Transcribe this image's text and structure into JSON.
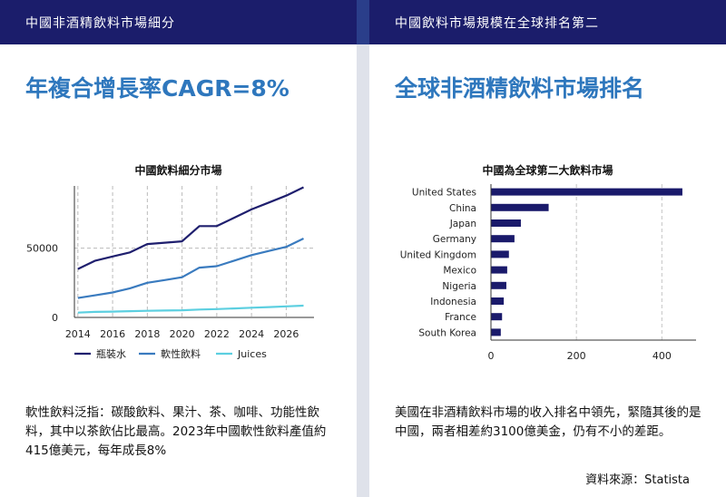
{
  "left": {
    "header": "中國非酒精飲料市場細分",
    "title": "年複合增長率CAGR=8%",
    "paragraph": "軟性飲料泛指：碳酸飲料、果汁、茶、咖啡、功能性飲料，其中以茶飲佔比最高。2023年中國軟性飲料產值約415億美元，每年成長8%"
  },
  "right": {
    "header": "中國飲料市場規模在全球排名第二",
    "title": "全球非酒精飲料市場排名",
    "paragraph": "美國在非酒精飲料市場的收入排名中領先，緊隨其後的是中國，兩者相差約3100億美金，仍有不小的差距。",
    "source": "資料來源：Statista"
  },
  "colors": {
    "header_bg": "#1b1d6b",
    "accent": "#2e77bd",
    "series1": "#1f1f6e",
    "series2": "#3a7bbf",
    "series3": "#5ccfe0",
    "bar": "#1a1a6b"
  },
  "chart_data": [
    {
      "type": "line",
      "title": "中國飲料細分市場",
      "x": [
        2014,
        2015,
        2016,
        2017,
        2018,
        2019,
        2020,
        2021,
        2022,
        2023,
        2024,
        2025,
        2026,
        2027
      ],
      "xticks": [
        "2014",
        "2016",
        "2018",
        "2020",
        "2022",
        "2024",
        "2026"
      ],
      "yticks": [
        "0",
        "50000"
      ],
      "xlim": [
        2013.8,
        2027.6
      ],
      "ylim": [
        0,
        95000
      ],
      "series": [
        {
          "name": "瓶裝水",
          "color": "#1f1f6e",
          "values": [
            35000,
            41000,
            44000,
            47000,
            53000,
            54000,
            55000,
            66000,
            66000,
            72000,
            78000,
            83000,
            88000,
            94000
          ]
        },
        {
          "name": "軟性飲料",
          "color": "#3a7bbf",
          "values": [
            14000,
            16000,
            18000,
            21000,
            25000,
            27000,
            29000,
            36000,
            37000,
            41000,
            45000,
            48000,
            51000,
            57000
          ]
        },
        {
          "name": "Juices",
          "color": "#5ccfe0",
          "values": [
            3500,
            4000,
            4200,
            4500,
            4800,
            5000,
            5200,
            5700,
            6000,
            6500,
            7000,
            7500,
            8000,
            8500
          ]
        }
      ]
    },
    {
      "type": "bar",
      "orientation": "horizontal",
      "title": "中國為全球第二大飲料市場",
      "categories": [
        "United States",
        "China",
        "Japan",
        "Germany",
        "United Kingdom",
        "Mexico",
        "Nigeria",
        "Indonesia",
        "France",
        "South Korea"
      ],
      "values": [
        448,
        135,
        70,
        55,
        42,
        38,
        36,
        30,
        26,
        23
      ],
      "xticks": [
        "0",
        "200",
        "400"
      ],
      "xlim": [
        0,
        480
      ]
    }
  ]
}
